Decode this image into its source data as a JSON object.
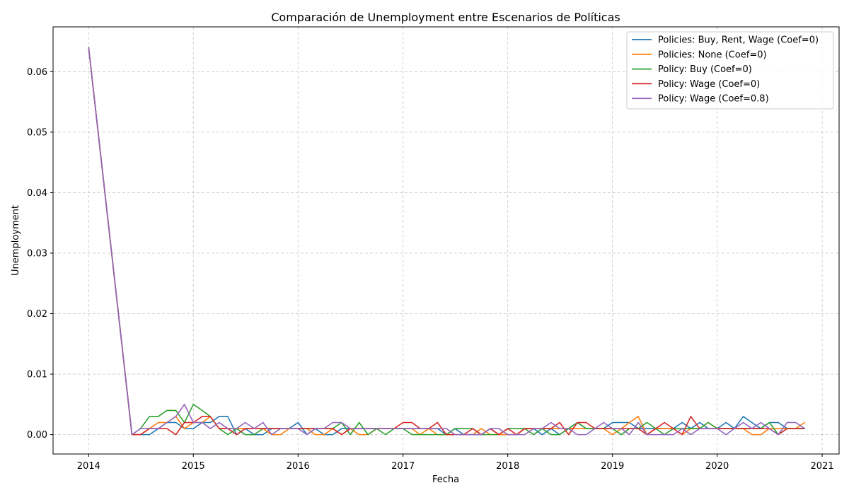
{
  "chart_data": {
    "type": "line",
    "title": "Comparación de Unemployment entre Escenarios de Políticas",
    "xlabel": "Fecha",
    "ylabel": "Unemployment",
    "x_tick_labels": [
      "2014",
      "2015",
      "2016",
      "2017",
      "2018",
      "2019",
      "2020",
      "2021"
    ],
    "y_tick_labels": [
      "0.00",
      "0.01",
      "0.02",
      "0.03",
      "0.04",
      "0.05",
      "0.06"
    ],
    "y_ticks": [
      0,
      0.01,
      0.02,
      0.03,
      0.04,
      0.05,
      0.06
    ],
    "xlim": [
      "2013-08-30",
      "2021-03-01"
    ],
    "ylim": [
      -0.0032,
      0.0674
    ],
    "grid": true,
    "legend_position": "top-right",
    "x": [
      "2014-01-01",
      "2014-06-01",
      "2014-07-01",
      "2014-08-01",
      "2014-09-01",
      "2014-10-01",
      "2014-11-01",
      "2014-12-01",
      "2015-01-01",
      "2015-02-01",
      "2015-03-01",
      "2015-04-01",
      "2015-05-01",
      "2015-06-01",
      "2015-07-01",
      "2015-08-01",
      "2015-09-01",
      "2015-10-01",
      "2015-11-01",
      "2015-12-01",
      "2016-01-01",
      "2016-02-01",
      "2016-03-01",
      "2016-04-01",
      "2016-05-01",
      "2016-06-01",
      "2016-07-01",
      "2016-08-01",
      "2016-09-01",
      "2016-10-01",
      "2016-11-01",
      "2016-12-01",
      "2017-01-01",
      "2017-02-01",
      "2017-03-01",
      "2017-04-01",
      "2017-05-01",
      "2017-06-01",
      "2017-07-01",
      "2017-08-01",
      "2017-09-01",
      "2017-10-01",
      "2017-11-01",
      "2017-12-01",
      "2018-01-01",
      "2018-02-01",
      "2018-03-01",
      "2018-04-01",
      "2018-05-01",
      "2018-06-01",
      "2018-07-01",
      "2018-08-01",
      "2018-09-01",
      "2018-10-01",
      "2018-11-01",
      "2018-12-01",
      "2019-01-01",
      "2019-02-01",
      "2019-03-01",
      "2019-04-01",
      "2019-05-01",
      "2019-06-01",
      "2019-07-01",
      "2019-08-01",
      "2019-09-01",
      "2019-10-01",
      "2019-11-01",
      "2019-12-01",
      "2020-01-01",
      "2020-02-01",
      "2020-03-01",
      "2020-04-01",
      "2020-05-01",
      "2020-06-01",
      "2020-07-01",
      "2020-08-01",
      "2020-09-01",
      "2020-10-01",
      "2020-11-01"
    ],
    "series": [
      {
        "name": "Policies: Buy, Rent, Wage (Coef=0)",
        "color": "#1f77b4",
        "values": [
          0.064,
          0,
          0,
          0,
          0.001,
          0.002,
          0.002,
          0.001,
          0.001,
          0.002,
          0.002,
          0.003,
          0.003,
          0,
          0.001,
          0,
          0,
          0.001,
          0.001,
          0.001,
          0.002,
          0,
          0.001,
          0,
          0,
          0.001,
          0.001,
          0.001,
          0.001,
          0.001,
          0.001,
          0.001,
          0.001,
          0.001,
          0.001,
          0.001,
          0.001,
          0,
          0.001,
          0,
          0,
          0,
          0.001,
          0,
          0,
          0,
          0.001,
          0.001,
          0,
          0.001,
          0,
          0.001,
          0.002,
          0.001,
          0.001,
          0.001,
          0.002,
          0.002,
          0.002,
          0.001,
          0.001,
          0.001,
          0.001,
          0.001,
          0.002,
          0.001,
          0.002,
          0.001,
          0.001,
          0.002,
          0.001,
          0.003,
          0.002,
          0.001,
          0.002,
          0.002,
          0.001,
          0.001,
          0.001
        ]
      },
      {
        "name": "Policies: None (Coef=0)",
        "color": "#ff7f0e",
        "values": [
          0.064,
          0,
          0,
          0.001,
          0.002,
          0.002,
          0.003,
          0.001,
          0.002,
          0.002,
          0.003,
          0.001,
          0.001,
          0.001,
          0.001,
          0.001,
          0.001,
          0,
          0,
          0.001,
          0.001,
          0.001,
          0,
          0,
          0.001,
          0,
          0.001,
          0,
          0,
          0.001,
          0.001,
          0.001,
          0.001,
          0.001,
          0,
          0.001,
          0,
          0,
          0,
          0,
          0,
          0.001,
          0,
          0,
          0,
          0,
          0.001,
          0.001,
          0.001,
          0.001,
          0.001,
          0.001,
          0.001,
          0.001,
          0.001,
          0.001,
          0,
          0.001,
          0.002,
          0.003,
          0,
          0.001,
          0.001,
          0.001,
          0,
          0.001,
          0.001,
          0.002,
          0.001,
          0.001,
          0.001,
          0.001,
          0,
          0,
          0.001,
          0.001,
          0.001,
          0.001,
          0.002
        ]
      },
      {
        "name": "Policy: Buy (Coef=0)",
        "color": "#2ca02c",
        "values": [
          0.064,
          0,
          0.001,
          0.003,
          0.003,
          0.004,
          0.004,
          0.002,
          0.005,
          0.004,
          0.003,
          0.001,
          0,
          0.001,
          0,
          0,
          0.001,
          0.001,
          0.001,
          0.001,
          0.001,
          0.001,
          0.001,
          0.001,
          0.001,
          0.002,
          0,
          0.002,
          0,
          0.001,
          0,
          0.001,
          0.001,
          0,
          0,
          0,
          0,
          0,
          0.001,
          0.001,
          0.001,
          0,
          0,
          0,
          0.001,
          0.001,
          0.001,
          0,
          0.001,
          0,
          0,
          0.001,
          0.002,
          0.001,
          0.001,
          0.001,
          0.001,
          0,
          0.001,
          0.001,
          0.002,
          0.001,
          0,
          0.001,
          0.001,
          0.001,
          0.001,
          0.002,
          0.001,
          0.001,
          0.001,
          0.001,
          0.001,
          0.001,
          0.002,
          0,
          0.001,
          0.001,
          0.001
        ]
      },
      {
        "name": "Policy: Wage (Coef=0)",
        "color": "#d62728",
        "values": [
          0.064,
          0,
          0,
          0.001,
          0.001,
          0.001,
          0,
          0.002,
          0.002,
          0.003,
          0.003,
          0.001,
          0.001,
          0,
          0.001,
          0.001,
          0.001,
          0.001,
          0.001,
          0.001,
          0.001,
          0.001,
          0.001,
          0.001,
          0.001,
          0,
          0.001,
          0.001,
          0.001,
          0.001,
          0.001,
          0.001,
          0.002,
          0.002,
          0.001,
          0.001,
          0.002,
          0,
          0,
          0,
          0.001,
          0,
          0.001,
          0,
          0.001,
          0,
          0.001,
          0.001,
          0.001,
          0.001,
          0.002,
          0,
          0.002,
          0.002,
          0.001,
          0.001,
          0.001,
          0.001,
          0.001,
          0.001,
          0,
          0.001,
          0.002,
          0.001,
          0,
          0.003,
          0.001,
          0.001,
          0.001,
          0.001,
          0.001,
          0.001,
          0.001,
          0.001,
          0.001,
          0,
          0.001,
          0.001,
          0.001
        ]
      },
      {
        "name": "Policy: Wage (Coef=0.8)",
        "color": "#9467bd",
        "values": [
          0.064,
          0,
          0.001,
          0.001,
          0.001,
          0.002,
          0.003,
          0.005,
          0.002,
          0.002,
          0.001,
          0.002,
          0.001,
          0.001,
          0.002,
          0.001,
          0.002,
          0,
          0.001,
          0.001,
          0.001,
          0,
          0.001,
          0.001,
          0.002,
          0.002,
          0.001,
          0.001,
          0.001,
          0.001,
          0.001,
          0.001,
          0.001,
          0.001,
          0.001,
          0.001,
          0.001,
          0.001,
          0,
          0,
          0,
          0,
          0.001,
          0.001,
          0,
          0,
          0,
          0.001,
          0.001,
          0.002,
          0.001,
          0.001,
          0,
          0,
          0.001,
          0.002,
          0.001,
          0.001,
          0,
          0.002,
          0,
          0,
          0,
          0,
          0.001,
          0,
          0.001,
          0.001,
          0.001,
          0,
          0.001,
          0.002,
          0.001,
          0.002,
          0.001,
          0,
          0.002,
          0.002,
          0.001
        ]
      }
    ]
  }
}
